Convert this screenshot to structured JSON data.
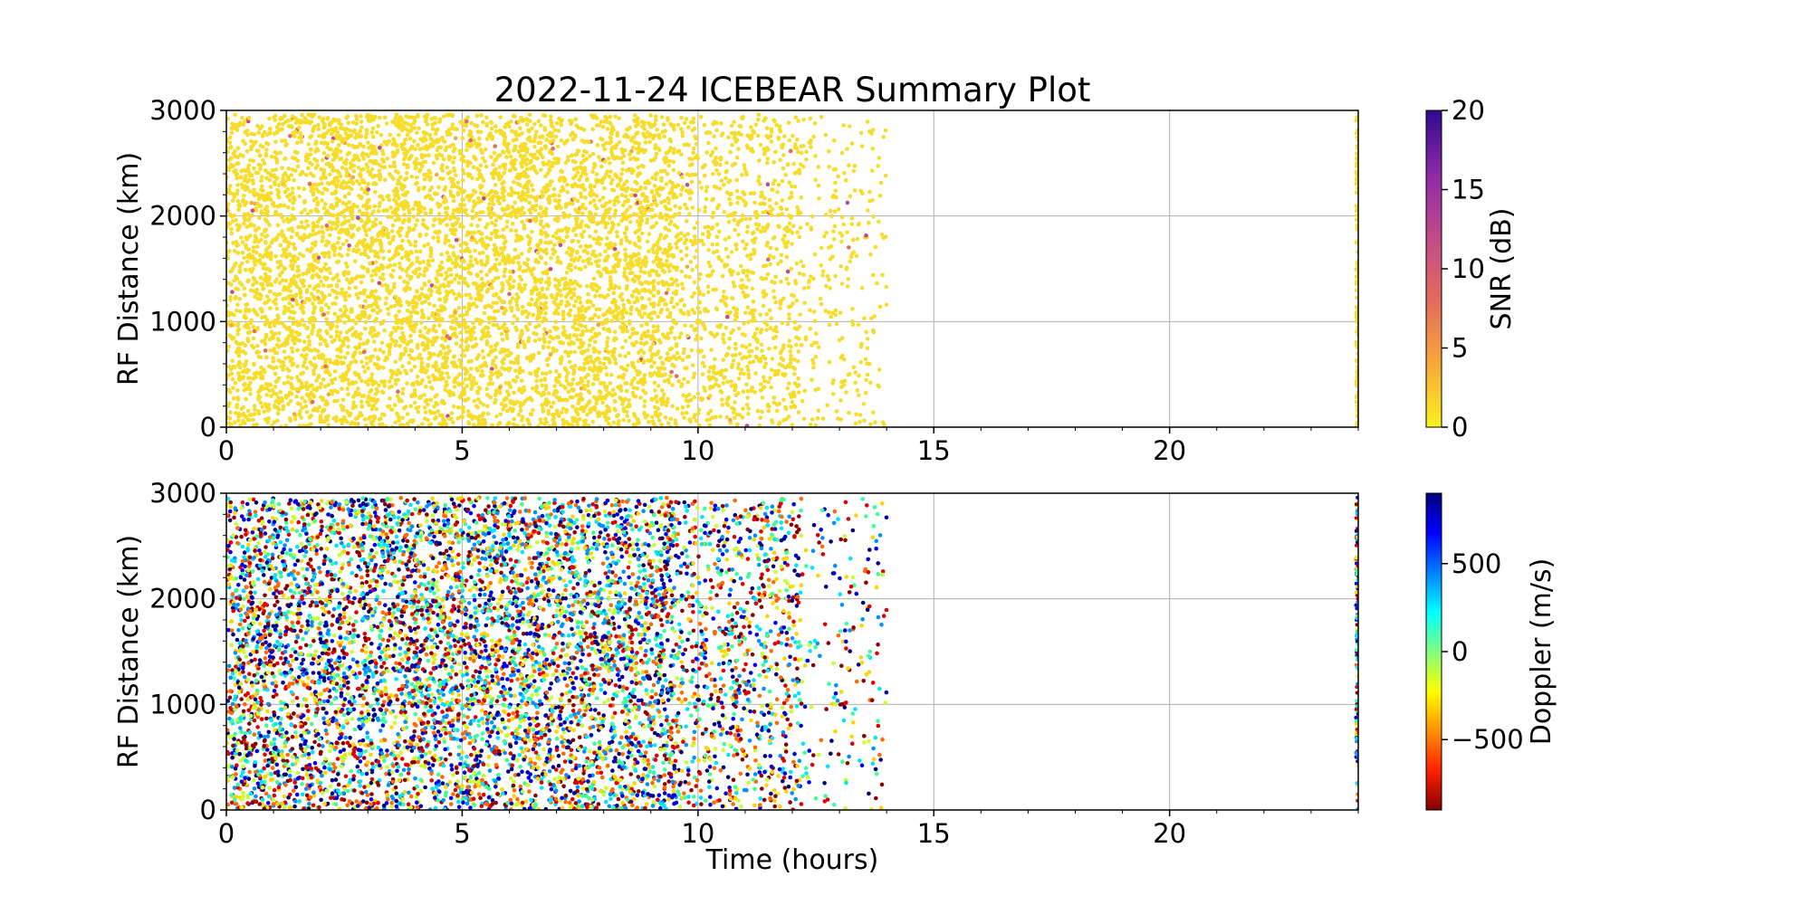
{
  "figure": {
    "title": "2022-11-24 ICEBEAR Summary Plot"
  },
  "chart_data": [
    {
      "type": "scatter",
      "panel": "top",
      "xlabel": "",
      "ylabel": "RF Distance (km)",
      "xlim": [
        0,
        24
      ],
      "ylim": [
        0,
        3000
      ],
      "xticks": [
        "0",
        "5",
        "10",
        "15",
        "20"
      ],
      "yticks": [
        "0",
        "1000",
        "2000",
        "3000"
      ],
      "grid": true,
      "point_color": "#f7dd2a",
      "data_coverage_hours": [
        [
          0,
          14
        ],
        [
          23.95,
          24
        ]
      ],
      "colorbar": {
        "label": "SNR (dB)",
        "range": [
          0,
          20
        ],
        "ticks": [
          "0",
          "5",
          "10",
          "15",
          "20"
        ],
        "colors": [
          "#f8f221",
          "#f8a83a",
          "#e36b5c",
          "#c14a8a",
          "#8d2aa8",
          "#2d0a8e"
        ]
      }
    },
    {
      "type": "scatter",
      "panel": "bottom",
      "xlabel": "Time (hours)",
      "ylabel": "RF Distance (km)",
      "xlim": [
        0,
        24
      ],
      "ylim": [
        0,
        3000
      ],
      "xticks": [
        "0",
        "5",
        "10",
        "15",
        "20"
      ],
      "yticks": [
        "0",
        "1000",
        "2000",
        "3000"
      ],
      "grid": true,
      "point_colors": [
        "#8b0000",
        "#e00000",
        "#ff6a00",
        "#ffd400",
        "#c8ff32",
        "#3cff9a",
        "#00e5ff",
        "#0090ff",
        "#0000e0",
        "#000080"
      ],
      "data_coverage_hours": [
        [
          0,
          14
        ],
        [
          23.95,
          24
        ]
      ],
      "colorbar": {
        "label": "Doppler (m/s)",
        "range": [
          -900,
          900
        ],
        "ticks": [
          "−500",
          "0",
          "500"
        ],
        "tick_values": [
          -500,
          0,
          500
        ],
        "colors": [
          "#800000",
          "#ff2000",
          "#ff9000",
          "#ffff00",
          "#80ff80",
          "#00ffff",
          "#0080ff",
          "#0000ff",
          "#000080"
        ]
      }
    }
  ]
}
